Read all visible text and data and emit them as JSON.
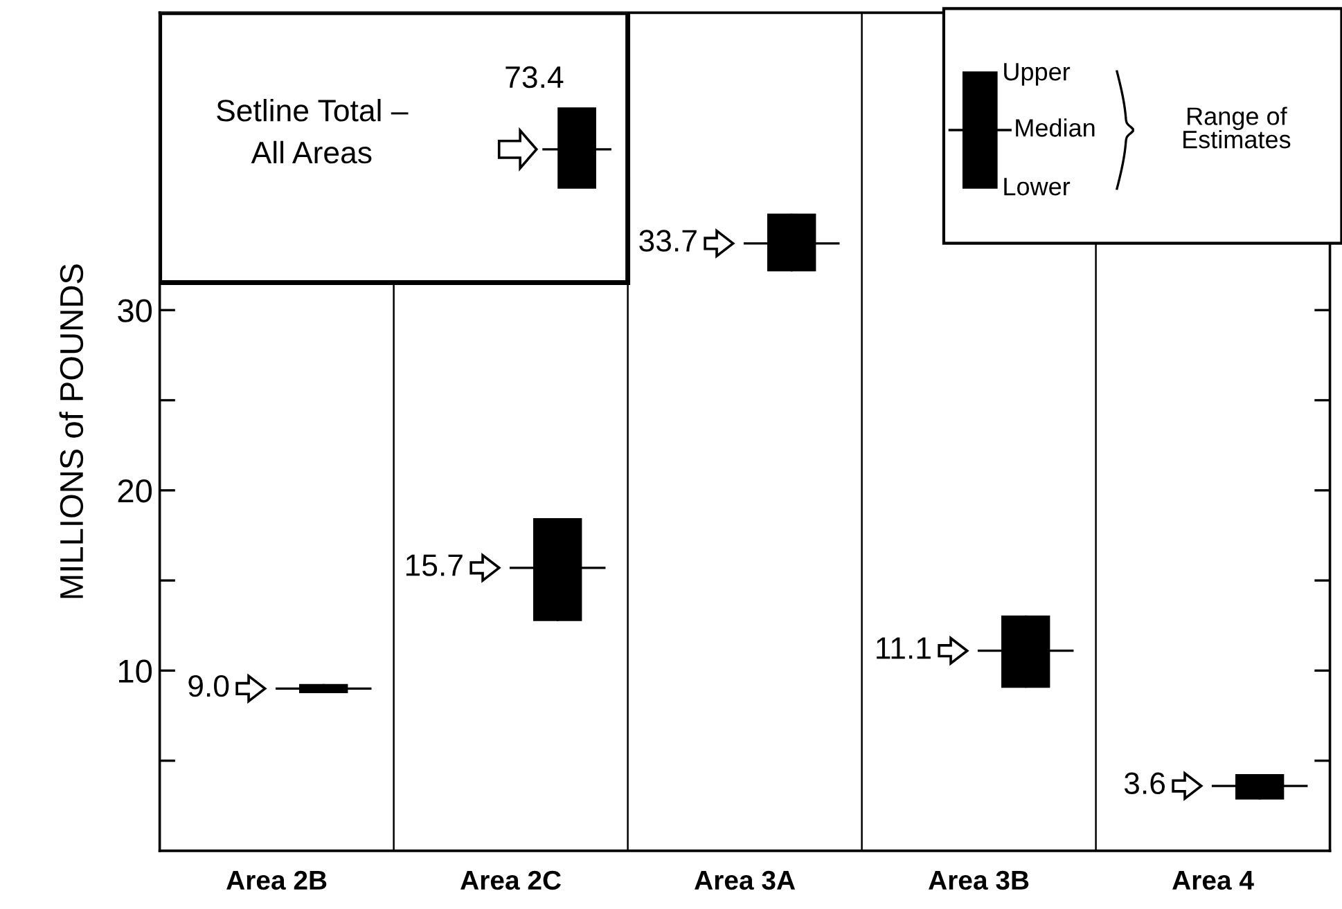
{
  "chart_data": {
    "type": "box",
    "ylabel": "MILLIONS of POUNDS",
    "categories": [
      "Area 2B",
      "Area 2C",
      "Area 3A",
      "Area 3B",
      "Area 4"
    ],
    "boxes": [
      {
        "low": 8.8,
        "q1": 8.8,
        "median": 9.0,
        "q3": 9.2,
        "high": 9.2
      },
      {
        "low": 12.8,
        "q1": 12.8,
        "median": 15.7,
        "q3": 18.4,
        "high": 18.4
      },
      {
        "low": 32.2,
        "q1": 32.2,
        "median": 33.7,
        "q3": 35.3,
        "high": 35.3
      },
      {
        "low": 9.1,
        "q1": 9.1,
        "median": 11.1,
        "q3": 13.0,
        "high": 13.0
      },
      {
        "low": 2.9,
        "q1": 2.9,
        "median": 3.6,
        "q3": 4.2,
        "high": 4.2
      }
    ],
    "color": "#000000",
    "value_labels": [
      "9.0",
      "15.7",
      "33.7",
      "11.1",
      "3.6"
    ],
    "ylim": [
      0,
      46.5
    ],
    "yticks": [
      {
        "value": 5,
        "label": null
      },
      10,
      {
        "value": 15,
        "label": null
      },
      20,
      {
        "value": 25,
        "label": null
      },
      30
    ],
    "grid": false,
    "annotations": [
      "Setline Total –\nAll Areas",
      "73.4",
      "Upper",
      "Median",
      "Lower",
      "Range of\nEstimates"
    ]
  }
}
